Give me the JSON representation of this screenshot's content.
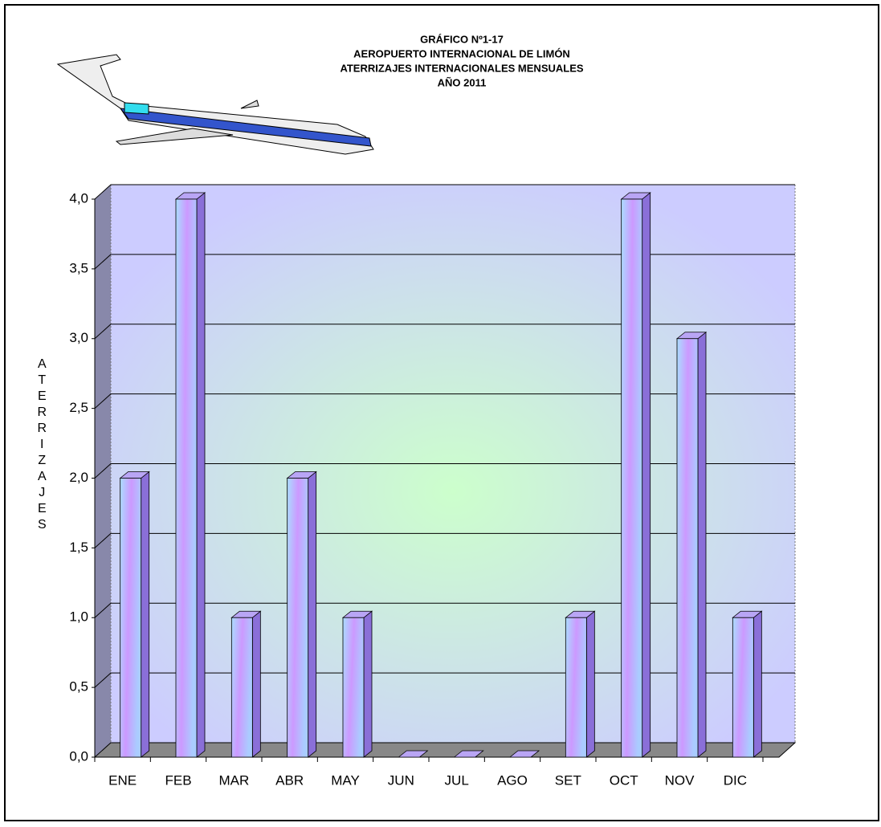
{
  "chart_data": {
    "type": "bar3d",
    "title": [
      "GRÁFICO Nº1-17",
      "AEROPUERTO INTERNACIONAL DE LIMÓN",
      "ATERRIZAJES INTERNACIONALES MENSUALES",
      "AÑO 2011"
    ],
    "y_label": "ATERRIZAJES",
    "categories": [
      "ENE",
      "FEB",
      "MAR",
      "ABR",
      "MAY",
      "JUN",
      "JUL",
      "AGO",
      "SET",
      "OCT",
      "NOV",
      "DIC"
    ],
    "values": [
      2,
      4,
      1,
      2,
      1,
      0,
      0,
      0,
      1,
      4,
      3,
      1
    ],
    "color": "#8a6fd8",
    "ylim": [
      0,
      4
    ],
    "yticks": [
      {
        "value": 0,
        "label": "0,0"
      },
      {
        "value": 0.5,
        "label": "0,5"
      },
      {
        "value": 1,
        "label": "1,0"
      },
      {
        "value": 1.5,
        "label": "1,5"
      },
      {
        "value": 2,
        "label": "2,0"
      },
      {
        "value": 2.5,
        "label": "2,5"
      },
      {
        "value": 3,
        "label": "3,0"
      },
      {
        "value": 3.5,
        "label": "3,5"
      },
      {
        "value": 4,
        "label": "4,0"
      }
    ],
    "grid": true
  }
}
